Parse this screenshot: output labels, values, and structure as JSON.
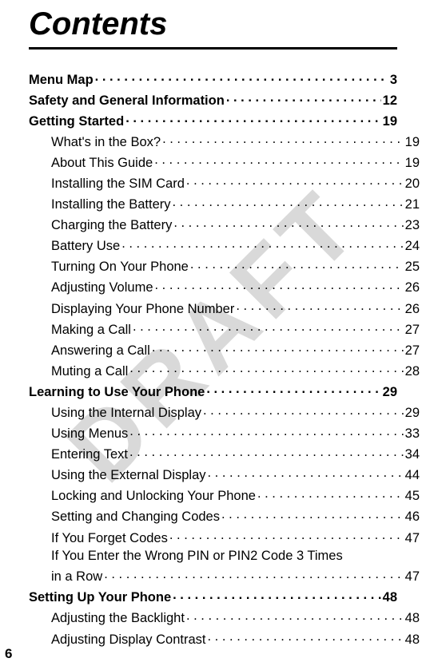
{
  "watermark": "DRAFT",
  "title": "Contents",
  "pageNumber": "6",
  "entries": [
    {
      "label": "Menu Map",
      "page": "3",
      "level": 0,
      "bold": true
    },
    {
      "label": "Safety and General Information",
      "page": "12",
      "level": 0,
      "bold": true
    },
    {
      "label": "Getting Started",
      "page": "19",
      "level": 0,
      "bold": true
    },
    {
      "label": "What's in the Box?",
      "page": "19",
      "level": 1,
      "bold": false
    },
    {
      "label": "About This Guide",
      "page": "19",
      "level": 1,
      "bold": false
    },
    {
      "label": "Installing the SIM Card",
      "page": "20",
      "level": 1,
      "bold": false
    },
    {
      "label": "Installing the Battery",
      "page": "21",
      "level": 1,
      "bold": false
    },
    {
      "label": "Charging the Battery",
      "page": "23",
      "level": 1,
      "bold": false
    },
    {
      "label": "Battery Use",
      "page": "24",
      "level": 1,
      "bold": false
    },
    {
      "label": "Turning On Your Phone",
      "page": "25",
      "level": 1,
      "bold": false
    },
    {
      "label": "Adjusting Volume",
      "page": "26",
      "level": 1,
      "bold": false
    },
    {
      "label": "Displaying Your Phone Number",
      "page": "26",
      "level": 1,
      "bold": false
    },
    {
      "label": "Making a Call",
      "page": "27",
      "level": 1,
      "bold": false
    },
    {
      "label": "Answering a Call",
      "page": "27",
      "level": 1,
      "bold": false
    },
    {
      "label": "Muting a Call",
      "page": "28",
      "level": 1,
      "bold": false
    },
    {
      "label": "Learning to Use Your Phone",
      "page": "29",
      "level": 0,
      "bold": true
    },
    {
      "label": "Using the Internal Display",
      "page": "29",
      "level": 1,
      "bold": false
    },
    {
      "label": "Using Menus",
      "page": "33",
      "level": 1,
      "bold": false
    },
    {
      "label": "Entering Text",
      "page": "34",
      "level": 1,
      "bold": false
    },
    {
      "label": "Using the External Display",
      "page": "44",
      "level": 1,
      "bold": false
    },
    {
      "label": "Locking and Unlocking Your Phone",
      "page": "45",
      "level": 1,
      "bold": false
    },
    {
      "label": "Setting and Changing Codes",
      "page": "46",
      "level": 1,
      "bold": false
    },
    {
      "label": "If You Forget Codes",
      "page": "47",
      "level": 1,
      "bold": false
    },
    {
      "label": "If You Enter the Wrong PIN or PIN2 Code 3 Times",
      "wrapSecond": "in a Row",
      "page": "47",
      "level": 1,
      "bold": false
    },
    {
      "label": "Setting Up Your Phone",
      "page": "48",
      "level": 0,
      "bold": true
    },
    {
      "label": "Adjusting the Backlight",
      "page": "48",
      "level": 1,
      "bold": false
    },
    {
      "label": "Adjusting Display Contrast",
      "page": "48",
      "level": 1,
      "bold": false
    }
  ]
}
